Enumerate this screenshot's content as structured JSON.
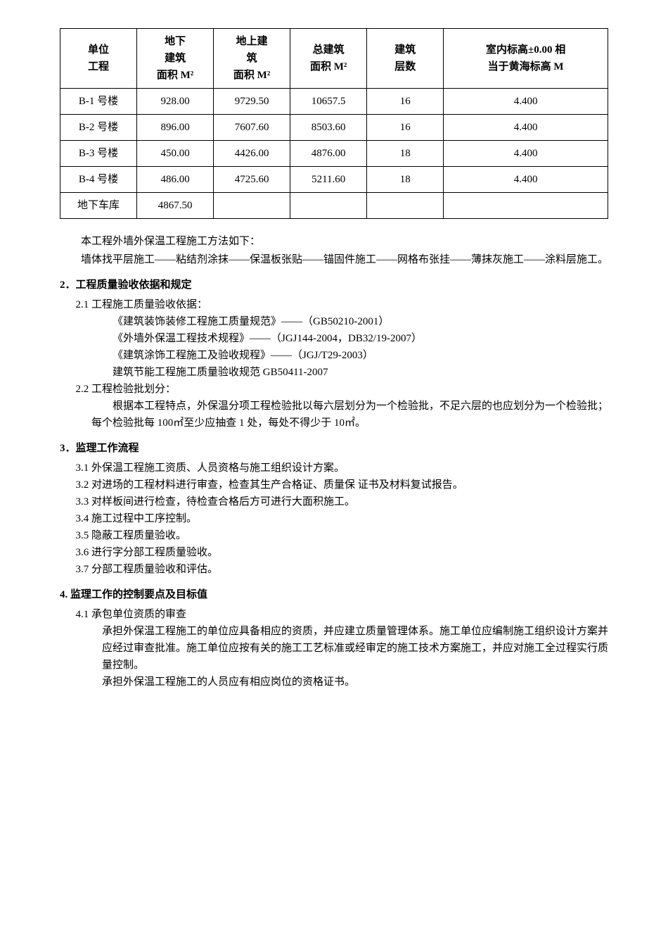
{
  "table": {
    "columns": [
      "单位\n工程",
      "地下\n建筑\n面积 M²",
      "地上建\n筑\n面积 M²",
      "总建筑\n面积 M²",
      "建筑\n层数",
      "室内标高±0.00 相\n当于黄海标高 M"
    ],
    "rows": [
      [
        "B-1 号楼",
        "928.00",
        "9729.50",
        "10657.5",
        "16",
        "4.400"
      ],
      [
        "B-2 号楼",
        "896.00",
        "7607.60",
        "8503.60",
        "16",
        "4.400"
      ],
      [
        "B-3 号楼",
        "450.00",
        "4426.00",
        "4876.00",
        "18",
        "4.400"
      ],
      [
        "B-4 号楼",
        "486.00",
        "4725.60",
        "5211.60",
        "18",
        "4.400"
      ],
      [
        "地下车库",
        "4867.50",
        "",
        "",
        "",
        ""
      ]
    ],
    "col_widths": [
      "14%",
      "14%",
      "14%",
      "14%",
      "14%",
      "30%"
    ]
  },
  "intro": {
    "p1": "本工程外墙外保温工程施工方法如下：",
    "p2": "墙体找平层施工——粘结剂涂抹——保温板张贴——锚固件施工——网格布张挂——薄抹灰施工——涂料层施工。"
  },
  "s2": {
    "heading": "2．工程质量验收依据和规定",
    "s21_title": "2.1 工程施工质量验收依据：",
    "s21_items": [
      "《建筑装饰装修工程施工质量规范》——（GB50210-2001）",
      "《外墙外保温工程技术规程》——（JGJ144-2004，DB32/19-2007）",
      "《建筑涂饰工程施工及验收规程》——（JGJ/T29-2003）",
      "建筑节能工程施工质量验收规范 GB50411-2007"
    ],
    "s22_title": "2.2 工程检验批划分：",
    "s22_body1": "根据本工程特点，外保温分项工程检验批以每六层划分为一个检验批，不足六层的也应划分为一个检验批；每个检验批每 100㎡至少应抽查 1 处，每处不得少于 10㎡。"
  },
  "s3": {
    "heading": "3．监理工作流程",
    "items": [
      "3.1 外保温工程施工资质、人员资格与施工组织设计方案。",
      "3.2 对进场的工程材料进行审查，检查其生产合格证、质量保 证书及材料复试报告。",
      "3.3 对样板间进行检查，待检查合格后方可进行大面积施工。",
      "3.4 施工过程中工序控制。",
      "3.5 隐蔽工程质量验收。",
      "3.6 进行字分部工程质量验收。",
      "3.7 分部工程质量验收和评估。"
    ]
  },
  "s4": {
    "heading": "4. 监理工作的控制要点及目标值",
    "s41_title": "4.1 承包单位资质的审查",
    "s41_body1": "承担外保温工程施工的单位应具备相应的资质，并应建立质量管理体系。施工单位应编制施工组织设计方案并应经过审查批准。施工单位应按有关的施工工艺标准或经审定的施工技术方案施工，并应对施工全过程实行质量控制。",
    "s41_body2": "承担外保温工程施工的人员应有相应岗位的资格证书。"
  }
}
